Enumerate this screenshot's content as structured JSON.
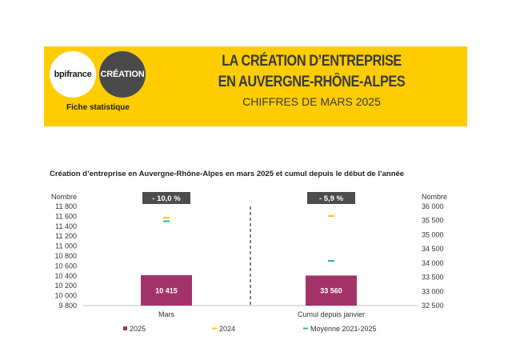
{
  "header": {
    "logo_bpi": "bpifrance",
    "logo_creation": "CRÉATION",
    "fiche": "Fiche statistique",
    "title_line1": "LA CRÉATION D’ENTREPRISE",
    "title_line2": "EN AUVERGNE-RHÔNE-ALPES",
    "subtitle": "CHIFFRES DE MARS 2025"
  },
  "colors": {
    "banner": "#ffcc00",
    "s2025": "#a3346a",
    "s2024": "#f5c518",
    "avg": "#2bb3a3",
    "badge": "#4d4d4d"
  },
  "chart_data": {
    "type": "bar",
    "title": "Création d’entreprise en Auvergne-Rhône-Alpes en mars 2025 et cumul depuis le début de l’année",
    "panels": [
      {
        "category": "Mars",
        "axis_label": "Nombre",
        "axis_side": "left",
        "ylim": [
          9800,
          11800
        ],
        "ticks": [
          9800,
          10000,
          10200,
          10400,
          10600,
          10800,
          11000,
          11200,
          11400,
          11600,
          11800
        ],
        "tick_labels": [
          "9 800",
          "10 000",
          "10 200",
          "10 400",
          "10 600",
          "10 800",
          "11 000",
          "11 200",
          "11 400",
          "11 600",
          "11 800"
        ],
        "value_2025": 10415,
        "value_label": "10 415",
        "value_2024": 11570,
        "value_avg": 11500,
        "change": "- 10,0 %"
      },
      {
        "category": "Cumul depuis janvier",
        "axis_label": "Nombre",
        "axis_side": "right",
        "ylim": [
          32500,
          36000
        ],
        "ticks": [
          32500,
          33000,
          33500,
          34000,
          34500,
          35000,
          35500,
          36000
        ],
        "tick_labels": [
          "32 500",
          "33 000",
          "33 500",
          "34 000",
          "34 500",
          "35 000",
          "35 500",
          "36 000"
        ],
        "value_2025": 33560,
        "value_label": "33 560",
        "value_2024": 35660,
        "value_avg": 34080,
        "change": "- 5,9 %"
      }
    ],
    "legend": {
      "position": "bottom",
      "items": [
        "2025",
        "2024",
        "Moyenne 2021-2025"
      ]
    },
    "grid": false
  }
}
